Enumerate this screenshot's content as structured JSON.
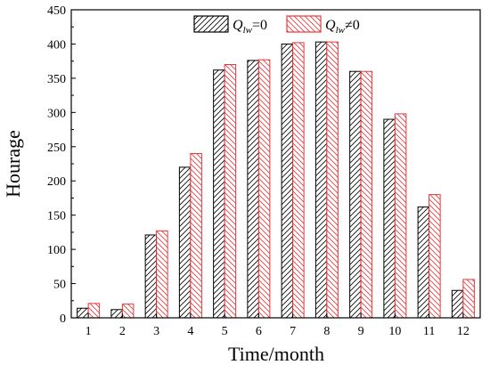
{
  "chart_data": {
    "type": "bar",
    "title": "",
    "xlabel": "Time/month",
    "ylabel": "Hourage",
    "ylim": [
      0,
      450
    ],
    "yticks": [
      0,
      50,
      100,
      150,
      200,
      250,
      300,
      350,
      400,
      450
    ],
    "categories": [
      "1",
      "2",
      "3",
      "4",
      "5",
      "6",
      "7",
      "8",
      "9",
      "10",
      "11",
      "12"
    ],
    "legend_position": "top-right",
    "series": [
      {
        "name": "Q_lw=0",
        "legend_parts": {
          "q": "Q",
          "sub": "lw",
          "rest": "=0"
        },
        "color": "#000000",
        "values": [
          14,
          12,
          121,
          220,
          362,
          376,
          400,
          403,
          360,
          290,
          162,
          40
        ]
      },
      {
        "name": "Q_lw≠0",
        "legend_parts": {
          "q": "Q",
          "sub": "lw",
          "rest": "≠0"
        },
        "color": "#e8363a",
        "values": [
          21,
          20,
          127,
          240,
          370,
          377,
          402,
          403,
          360,
          298,
          180,
          56
        ]
      }
    ]
  }
}
